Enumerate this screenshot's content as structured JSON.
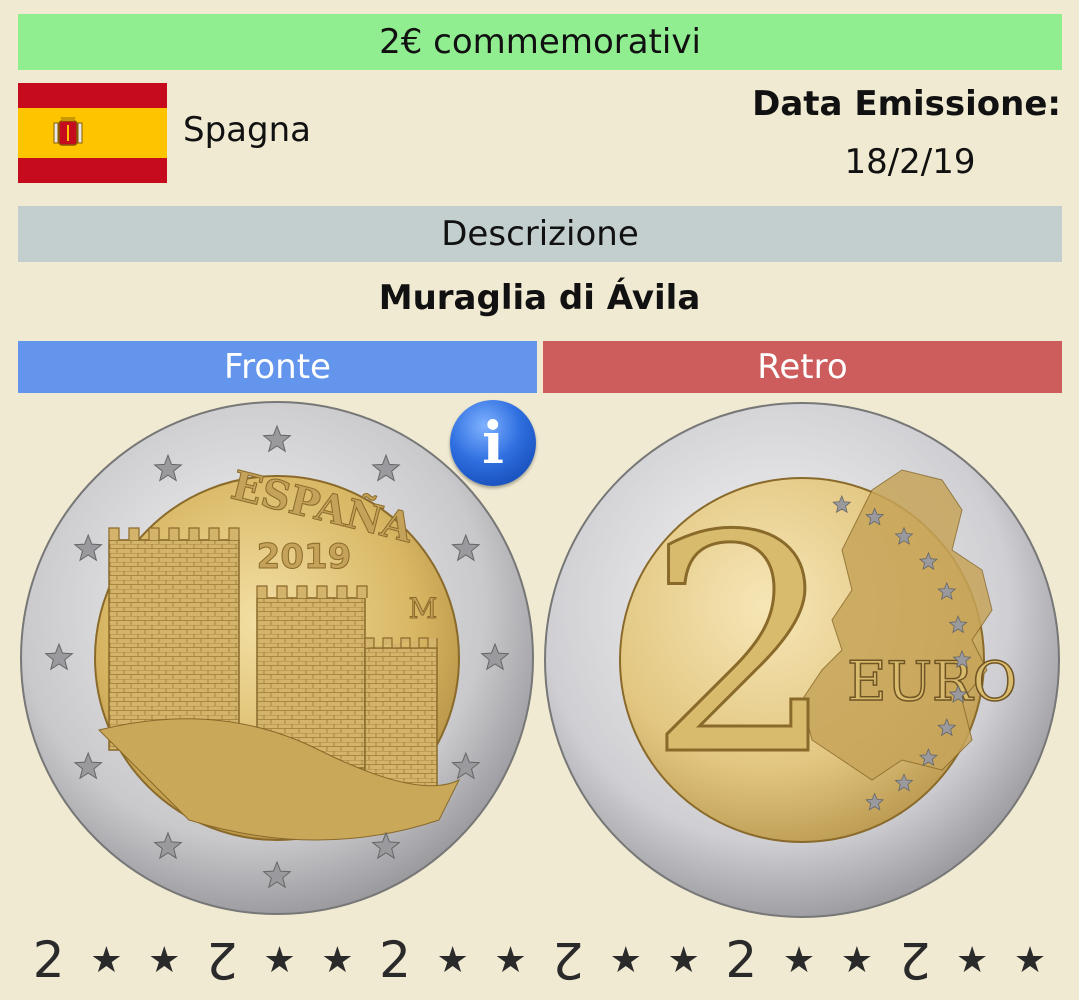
{
  "header": {
    "title": "2€ commemorativi"
  },
  "country": {
    "name": "Spagna",
    "flag_icon": "spain-flag-icon",
    "flag_colors": [
      "#c60b1e",
      "#ffc400"
    ]
  },
  "issue": {
    "label": "Data Emissione:",
    "date": "18/2/19"
  },
  "description": {
    "header": "Descrizione",
    "text": "Muraglia di Ávila"
  },
  "sides": {
    "front_label": "Fronte",
    "back_label": "Retro"
  },
  "coin_front": {
    "country_text": "ESPAÑA",
    "year": "2019",
    "mint_mark": "M"
  },
  "coin_back": {
    "denomination": "2",
    "currency": "EURO"
  },
  "info_button": {
    "glyph": "i"
  },
  "edge_inscription": {
    "glyph": "2",
    "star": "★"
  },
  "colors": {
    "title_bar": "#90ee90",
    "description_bar": "#c3cfcf",
    "front_bar": "#6495ed",
    "back_bar": "#cd5c5c",
    "background": "#f0ead2"
  }
}
